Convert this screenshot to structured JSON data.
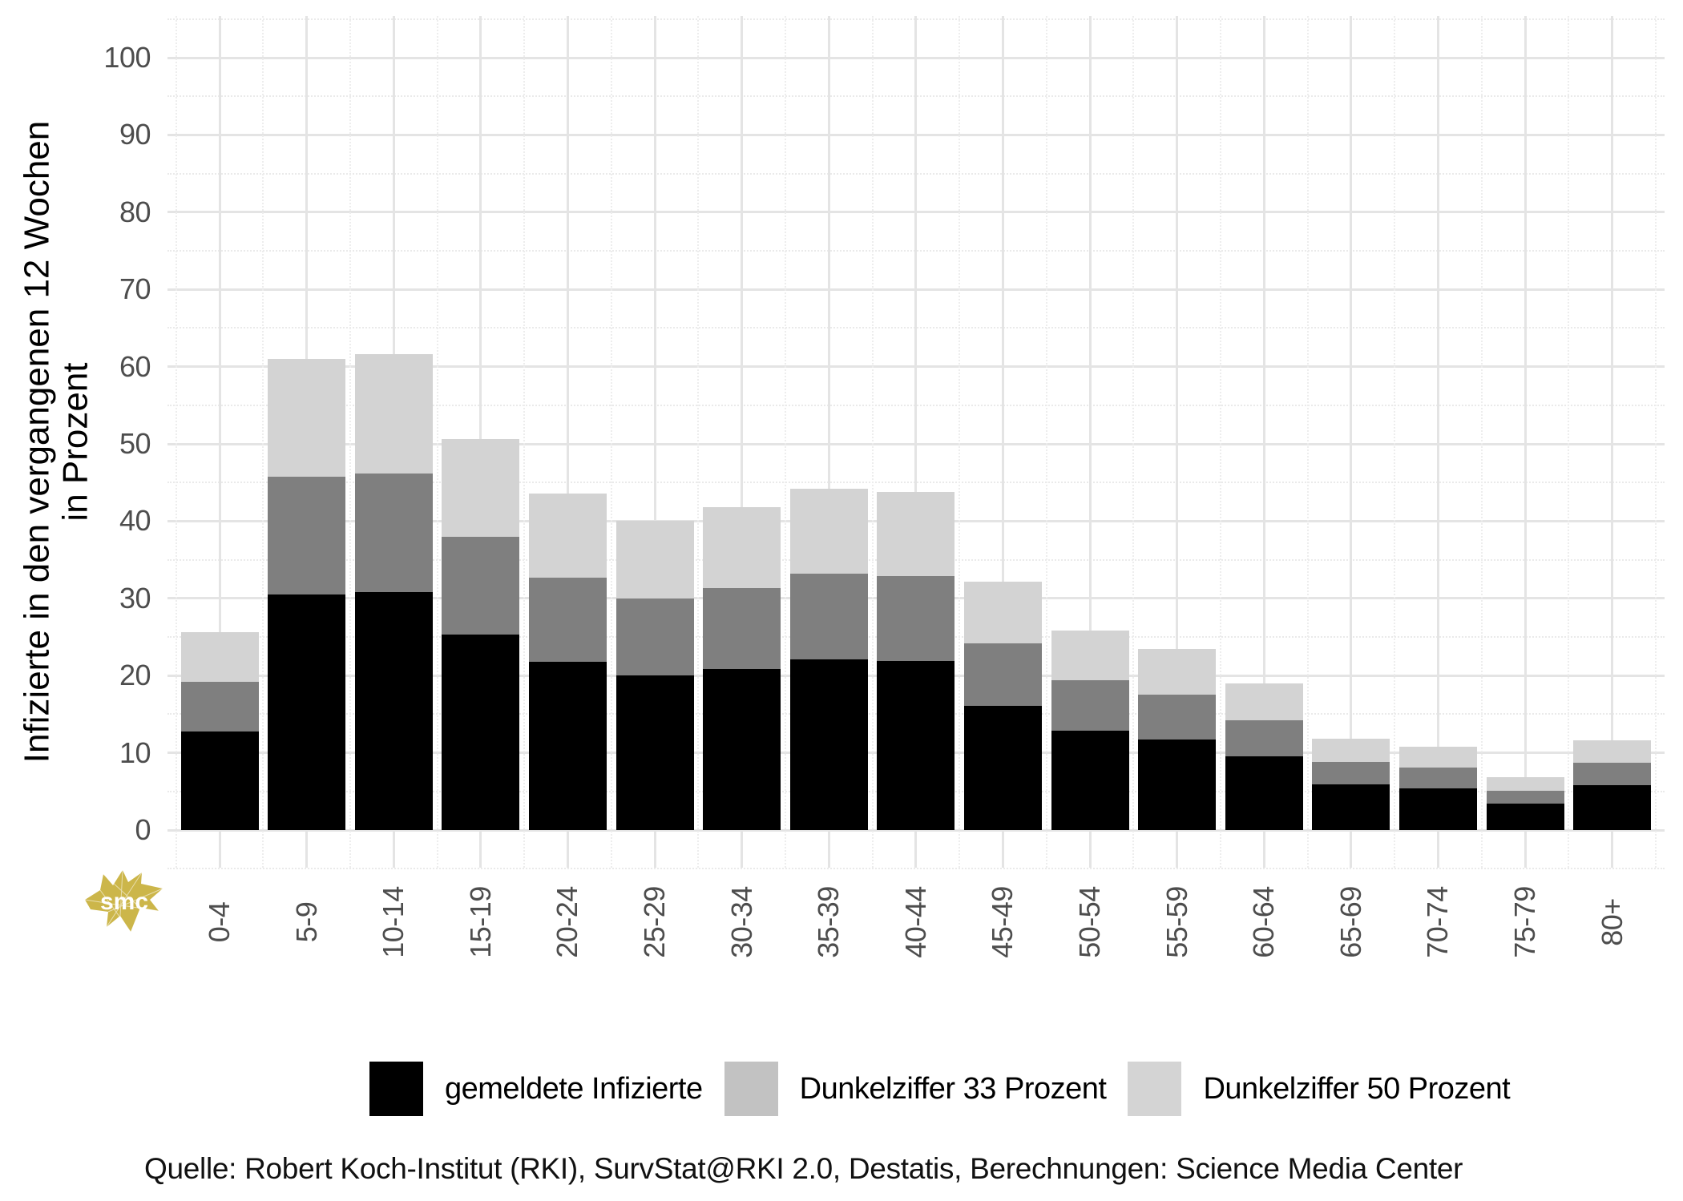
{
  "y_axis": {
    "title_line1": "Infizierte in den vergangenen 12 Wochen",
    "title_line2": "in Prozent",
    "ticks": [
      0,
      10,
      20,
      30,
      40,
      50,
      60,
      70,
      80,
      90,
      100
    ]
  },
  "x_axis": {
    "categories": [
      "0-4",
      "5-9",
      "10-14",
      "15-19",
      "20-24",
      "25-29",
      "30-34",
      "35-39",
      "40-44",
      "45-49",
      "50-54",
      "55-59",
      "60-64",
      "65-69",
      "70-74",
      "75-79",
      "80+"
    ]
  },
  "legend": {
    "items": [
      {
        "label": "gemeldete Infizierte",
        "swatch_color": "#000000"
      },
      {
        "label": "Dunkelziffer 33 Prozent",
        "swatch_color": "#c2c2c2"
      },
      {
        "label": "Dunkelziffer 50 Prozent",
        "swatch_color": "#d4d4d4"
      }
    ]
  },
  "source": "Quelle: Robert Koch-Institut (RKI), SurvStat@RKI 2.0, Destatis, Berechnungen: Science Media Center",
  "logo": {
    "text": "smc",
    "color": "#ccb64a"
  },
  "chart_data": {
    "type": "bar",
    "stacked": true,
    "title": "",
    "xlabel": "",
    "ylabel": "Infizierte in den vergangenen 12 Wochen in Prozent",
    "ylim": [
      0,
      100
    ],
    "grid": "major+minor",
    "legend_position": "bottom",
    "categories": [
      "0-4",
      "5-9",
      "10-14",
      "15-19",
      "20-24",
      "25-29",
      "30-34",
      "35-39",
      "40-44",
      "45-49",
      "50-54",
      "55-59",
      "60-64",
      "65-69",
      "70-74",
      "75-79",
      "80+"
    ],
    "series": [
      {
        "name": "gemeldete Infizierte",
        "color": "#000000",
        "values": [
          12.8,
          30.5,
          30.8,
          25.3,
          21.8,
          20.0,
          20.9,
          22.1,
          21.9,
          16.1,
          12.9,
          11.7,
          9.5,
          5.9,
          5.4,
          3.4,
          5.8
        ]
      },
      {
        "name": "Dunkelziffer 33 Prozent",
        "color": "#7f7f7f",
        "values": [
          6.4,
          15.25,
          15.4,
          12.65,
          10.9,
          10.0,
          10.45,
          11.05,
          10.95,
          8.05,
          6.45,
          5.85,
          4.75,
          2.95,
          2.7,
          1.7,
          2.9
        ]
      },
      {
        "name": "Dunkelziffer 50 Prozent",
        "color": "#d3d3d3",
        "values": [
          6.4,
          15.25,
          15.4,
          12.65,
          10.9,
          10.0,
          10.45,
          11.05,
          10.95,
          8.05,
          6.45,
          5.85,
          4.75,
          2.95,
          2.7,
          1.7,
          2.9
        ]
      }
    ],
    "stack_totals": [
      25.6,
      61.0,
      61.6,
      50.6,
      43.6,
      40.0,
      41.8,
      44.2,
      43.8,
      32.2,
      25.8,
      23.4,
      19.0,
      11.8,
      10.8,
      6.8,
      11.6
    ]
  }
}
